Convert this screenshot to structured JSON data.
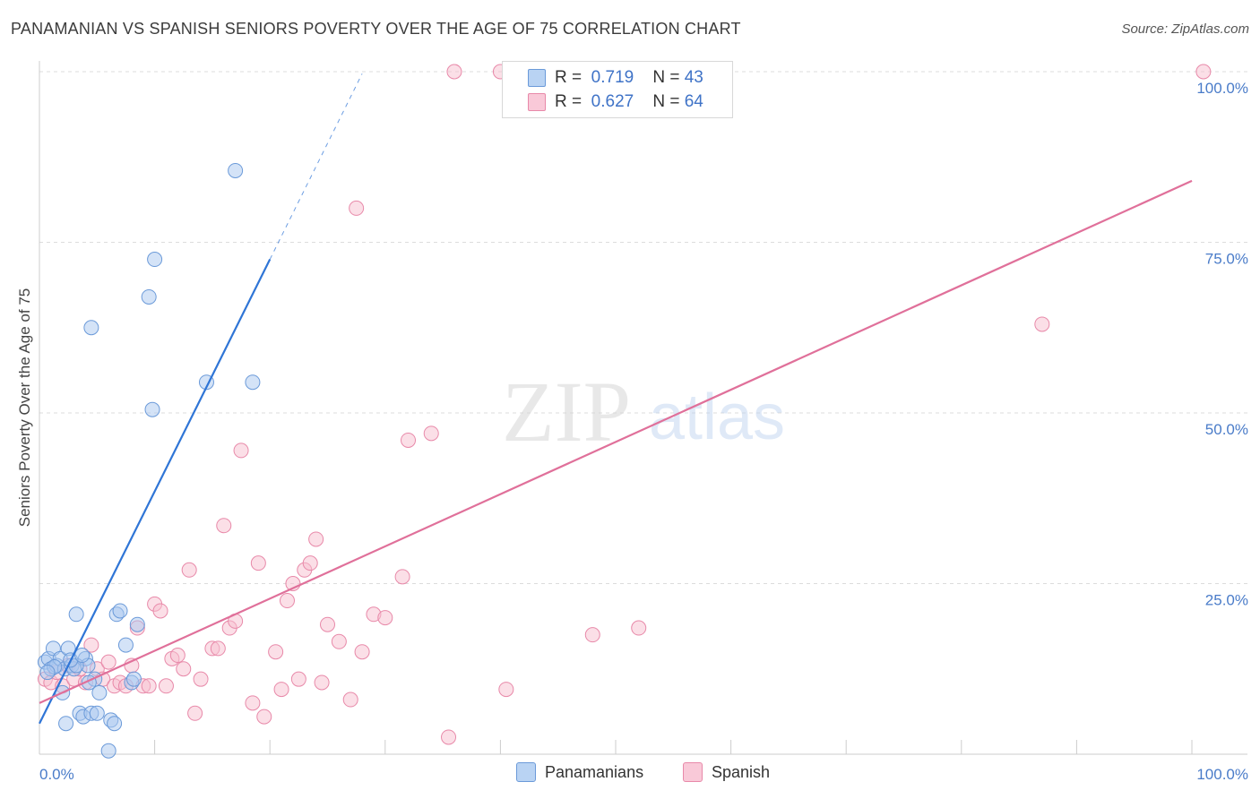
{
  "title": "PANAMANIAN VS SPANISH SENIORS POVERTY OVER THE AGE OF 75 CORRELATION CHART",
  "source": "Source: ZipAtlas.com",
  "watermark": {
    "zip": "ZIP",
    "atlas": "atlas"
  },
  "colors": {
    "blue_fill": "#aac8f0",
    "blue_stroke": "#6b9ad9",
    "blue_line": "#2f75d6",
    "pink_fill": "#f7bfd0",
    "pink_stroke": "#e889a9",
    "pink_line": "#e0709a",
    "tick_text": "#4a7cc9"
  },
  "legend_top": {
    "rows": [
      {
        "r_label": "R =",
        "r_value": "0.719",
        "n_label": "N =",
        "n_value": "43"
      },
      {
        "r_label": "R =",
        "r_value": "0.627",
        "n_label": "N =",
        "n_value": "64"
      }
    ]
  },
  "legend_bottom": {
    "items": [
      "Panamanians",
      "Spanish"
    ]
  },
  "chart_data": {
    "type": "scatter",
    "title": "PANAMANIAN VS SPANISH SENIORS POVERTY OVER THE AGE OF 75 CORRELATION CHART",
    "xlabel": "",
    "ylabel": "Seniors Poverty Over the Age of 75",
    "xlim": [
      0,
      100
    ],
    "ylim": [
      0,
      100
    ],
    "x_tick_labels": [
      "0.0%",
      "100.0%"
    ],
    "y_ticks": [
      25,
      50,
      75,
      100
    ],
    "y_tick_labels": [
      "25.0%",
      "50.0%",
      "75.0%",
      "100.0%"
    ],
    "grid": true,
    "series": [
      {
        "name": "Panamanians",
        "r": 0.719,
        "n": 43,
        "trend": {
          "x0": 0,
          "y0": 4.5,
          "x1": 20,
          "y1": 72.5,
          "dash_to_x": 28
        },
        "points": [
          [
            0.5,
            13.5
          ],
          [
            0.8,
            14
          ],
          [
            1,
            12.5
          ],
          [
            1.2,
            15.5
          ],
          [
            1.5,
            13
          ],
          [
            1.8,
            14
          ],
          [
            2,
            9
          ],
          [
            2.2,
            12.5
          ],
          [
            2.5,
            15.5
          ],
          [
            2.8,
            13
          ],
          [
            3,
            12.5
          ],
          [
            3.2,
            20.5
          ],
          [
            3.5,
            6
          ],
          [
            3.8,
            5.5
          ],
          [
            4,
            14
          ],
          [
            4.2,
            13
          ],
          [
            4.5,
            6
          ],
          [
            4.8,
            11
          ],
          [
            5,
            6
          ],
          [
            5.2,
            9
          ],
          [
            2.3,
            4.5
          ],
          [
            3.2,
            13
          ],
          [
            6,
            0.5
          ],
          [
            6.2,
            5
          ],
          [
            6.5,
            4.5
          ],
          [
            6.7,
            20.5
          ],
          [
            7,
            21
          ],
          [
            7.5,
            16
          ],
          [
            8,
            10.5
          ],
          [
            8.2,
            11
          ],
          [
            8.5,
            19
          ],
          [
            9.5,
            67
          ],
          [
            9.8,
            50.5
          ],
          [
            10,
            72.5
          ],
          [
            4.5,
            62.5
          ],
          [
            14.5,
            54.5
          ],
          [
            17,
            85.5
          ],
          [
            18.5,
            54.5
          ],
          [
            1.3,
            12.8
          ],
          [
            2.7,
            13.8
          ],
          [
            0.7,
            12
          ],
          [
            3.7,
            14.5
          ],
          [
            4.3,
            10.5
          ]
        ]
      },
      {
        "name": "Spanish",
        "r": 0.627,
        "n": 64,
        "trend": {
          "x0": 0,
          "y0": 7.5,
          "x1": 100,
          "y1": 84
        },
        "points": [
          [
            0.5,
            11
          ],
          [
            1,
            10.5
          ],
          [
            1.5,
            12
          ],
          [
            2,
            10
          ],
          [
            2.5,
            13
          ],
          [
            3,
            11
          ],
          [
            3.5,
            12.5
          ],
          [
            4,
            10.5
          ],
          [
            4.5,
            16
          ],
          [
            5,
            12.5
          ],
          [
            5.5,
            11
          ],
          [
            6,
            13.5
          ],
          [
            6.5,
            10
          ],
          [
            7,
            10.5
          ],
          [
            7.5,
            10
          ],
          [
            8,
            13
          ],
          [
            8.5,
            18.5
          ],
          [
            9,
            10
          ],
          [
            9.5,
            10
          ],
          [
            10,
            22
          ],
          [
            10.5,
            21
          ],
          [
            11,
            10
          ],
          [
            11.5,
            14
          ],
          [
            12,
            14.5
          ],
          [
            12.5,
            12.5
          ],
          [
            13,
            27
          ],
          [
            13.5,
            6
          ],
          [
            14,
            11
          ],
          [
            15,
            15.5
          ],
          [
            15.5,
            15.5
          ],
          [
            16,
            33.5
          ],
          [
            16.5,
            18.5
          ],
          [
            17,
            19.5
          ],
          [
            17.5,
            44.5
          ],
          [
            18.5,
            7.5
          ],
          [
            19,
            28
          ],
          [
            19.5,
            5.5
          ],
          [
            20.5,
            15
          ],
          [
            21,
            9.5
          ],
          [
            21.5,
            22.5
          ],
          [
            22,
            25
          ],
          [
            22.5,
            11
          ],
          [
            23,
            27
          ],
          [
            23.5,
            28
          ],
          [
            24,
            31.5
          ],
          [
            24.5,
            10.5
          ],
          [
            25,
            19
          ],
          [
            26,
            16.5
          ],
          [
            27,
            8
          ],
          [
            27.5,
            80
          ],
          [
            28,
            15
          ],
          [
            29,
            20.5
          ],
          [
            30,
            20
          ],
          [
            31.5,
            26
          ],
          [
            32,
            46
          ],
          [
            34,
            47
          ],
          [
            35.5,
            2.5
          ],
          [
            36,
            100
          ],
          [
            40,
            100
          ],
          [
            40.5,
            9.5
          ],
          [
            48,
            17.5
          ],
          [
            52,
            18.5
          ],
          [
            87,
            63
          ],
          [
            101,
            100
          ]
        ]
      }
    ]
  }
}
